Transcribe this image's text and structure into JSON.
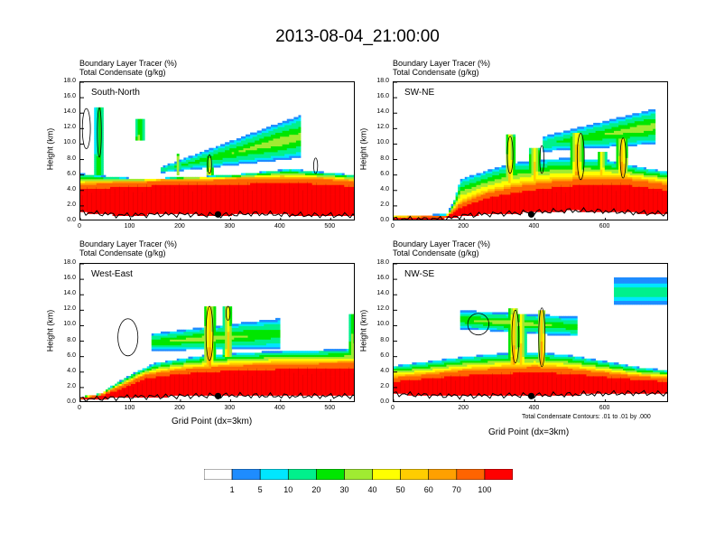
{
  "title": "2013-08-04_21:00:00",
  "colors": {
    "c0": "#ffffff",
    "c1": "#1e8cff",
    "c2": "#00e6ff",
    "c3": "#00f08c",
    "c4": "#00e600",
    "c5": "#a0eb32",
    "c6": "#ffff00",
    "c7": "#ffcd00",
    "c8": "#ffa000",
    "c9": "#ff6400",
    "c10": "#ff0000"
  },
  "legend": {
    "labels": [
      "1",
      "5",
      "10",
      "20",
      "30",
      "40",
      "50",
      "60",
      "70",
      "100"
    ]
  },
  "variable_labels": {
    "line1": "Boundary Layer Tracer   (%)",
    "line2": "Total Condensate   (g/kg)"
  },
  "contour_note": "Total Condensate Contours: .01 to .01 by .000",
  "chart_data": [
    {
      "type": "heatmap",
      "id": "p1",
      "title": "South-North",
      "ylabel": "Height (km)",
      "xlabel": "",
      "xlim": [
        0,
        550
      ],
      "ylim": [
        0,
        18
      ],
      "xticks": [
        "0",
        "100",
        "200",
        "300",
        "400",
        "500"
      ],
      "xtick_values": [
        0,
        100,
        200,
        300,
        400,
        500
      ],
      "yticks": [
        "0.0",
        "2.0",
        "4.0",
        "6.0",
        "8.0",
        "10.0",
        "12.0",
        "14.0",
        "16.0",
        "18.0"
      ],
      "marker_x": 275,
      "terrain": [
        [
          0,
          1.2
        ],
        [
          40,
          1.0
        ],
        [
          80,
          0.8
        ],
        [
          150,
          0.9
        ],
        [
          220,
          0.9
        ],
        [
          280,
          0.8
        ],
        [
          340,
          1.0
        ],
        [
          400,
          0.9
        ],
        [
          460,
          0.8
        ],
        [
          550,
          0.8
        ]
      ],
      "bl_top": [
        [
          0,
          6.2
        ],
        [
          60,
          5.8
        ],
        [
          100,
          5.6
        ],
        [
          160,
          5.6
        ],
        [
          220,
          5.8
        ],
        [
          300,
          6.0
        ],
        [
          360,
          6.4
        ],
        [
          420,
          6.8
        ],
        [
          480,
          6.4
        ],
        [
          550,
          6.0
        ]
      ],
      "bl_red": [
        [
          0,
          4.2
        ],
        [
          100,
          4.5
        ],
        [
          200,
          4.8
        ],
        [
          300,
          4.8
        ],
        [
          400,
          5.0
        ],
        [
          500,
          4.8
        ],
        [
          550,
          4.5
        ]
      ],
      "bl_orange": [
        [
          0,
          5.0
        ],
        [
          100,
          5.2
        ],
        [
          200,
          5.5
        ],
        [
          300,
          5.6
        ],
        [
          400,
          5.8
        ],
        [
          500,
          5.6
        ],
        [
          550,
          5.3
        ]
      ],
      "plumes": [
        {
          "xc": 38,
          "w": 9,
          "bot": 6,
          "top": 14.8,
          "peak": 30
        },
        {
          "xc": 118,
          "w": 10,
          "bot": 10.4,
          "top": 13.2,
          "peak": 35
        },
        {
          "xc": 195,
          "w": 4,
          "bot": 6,
          "top": 8.8,
          "peak": 40
        },
        {
          "xc": 258,
          "w": 7,
          "bot": 6,
          "top": 8.3,
          "peak": 50
        }
      ],
      "anvil": {
        "x0": 160,
        "x1": 440,
        "base0": 6.3,
        "base1": 8.2,
        "top0": 7.0,
        "top1": 13.8,
        "peakx": 400
      },
      "contours": [
        {
          "cx": 12,
          "cy": 12.0,
          "rx": 8,
          "ry": 2.6
        },
        {
          "cx": 38,
          "cy": 11.5,
          "rx": 4,
          "ry": 3.2
        },
        {
          "cx": 258,
          "cy": 7.4,
          "rx": 4,
          "ry": 1.2
        },
        {
          "cx": 470,
          "cy": 7.2,
          "rx": 4,
          "ry": 1.0
        }
      ]
    },
    {
      "type": "heatmap",
      "id": "p2",
      "title": "SW-NE",
      "ylabel": "Height (km)",
      "xlabel": "",
      "xlim": [
        0,
        780
      ],
      "ylim": [
        0,
        18
      ],
      "xticks": [
        "0",
        "200",
        "400",
        "600"
      ],
      "xtick_values": [
        0,
        200,
        400,
        600
      ],
      "yticks": [
        "0.0",
        "2.0",
        "4.0",
        "6.0",
        "8.0",
        "10.0",
        "12.0",
        "14.0",
        "16.0",
        "18.0"
      ],
      "marker_x": 390,
      "terrain": [
        [
          0,
          0.3
        ],
        [
          100,
          0.3
        ],
        [
          160,
          0.4
        ],
        [
          200,
          0.8
        ],
        [
          300,
          1.0
        ],
        [
          400,
          1.2
        ],
        [
          500,
          1.4
        ],
        [
          600,
          1.3
        ],
        [
          700,
          1.1
        ],
        [
          780,
          1.0
        ]
      ],
      "bl_top": [
        [
          0,
          0.8
        ],
        [
          150,
          0.9
        ],
        [
          170,
          2.5
        ],
        [
          190,
          5.5
        ],
        [
          240,
          6.2
        ],
        [
          330,
          7.5
        ],
        [
          420,
          8.0
        ],
        [
          500,
          8.2
        ],
        [
          600,
          8.0
        ],
        [
          700,
          7.0
        ],
        [
          780,
          6.4
        ]
      ],
      "bl_red": [
        [
          0,
          0.5
        ],
        [
          150,
          0.6
        ],
        [
          190,
          1.8
        ],
        [
          260,
          3.0
        ],
        [
          350,
          3.8
        ],
        [
          450,
          4.4
        ],
        [
          550,
          4.8
        ],
        [
          650,
          4.8
        ],
        [
          780,
          4.0
        ]
      ],
      "bl_orange": [
        [
          0,
          0.6
        ],
        [
          150,
          0.7
        ],
        [
          190,
          2.5
        ],
        [
          260,
          3.8
        ],
        [
          350,
          4.8
        ],
        [
          450,
          5.4
        ],
        [
          550,
          5.8
        ],
        [
          650,
          5.8
        ],
        [
          780,
          5.0
        ]
      ],
      "plumes": [
        {
          "xc": 330,
          "w": 14,
          "bot": 5,
          "top": 11.2,
          "peak": 60
        },
        {
          "xc": 400,
          "w": 16,
          "bot": 5,
          "top": 9.4,
          "peak": 60
        },
        {
          "xc": 520,
          "w": 18,
          "bot": 6,
          "top": 11.6,
          "peak": 70
        },
        {
          "xc": 590,
          "w": 12,
          "bot": 6,
          "top": 9.0,
          "peak": 60
        },
        {
          "xc": 648,
          "w": 16,
          "bot": 6,
          "top": 10.8,
          "peak": 70
        }
      ],
      "anvil": {
        "x0": 420,
        "x1": 740,
        "base0": 9.0,
        "base1": 10.0,
        "top0": 11.0,
        "top1": 14.6,
        "peakx": 700
      },
      "contours": [
        {
          "cx": 330,
          "cy": 8.6,
          "rx": 8,
          "ry": 2.4
        },
        {
          "cx": 420,
          "cy": 8.0,
          "rx": 6,
          "ry": 1.8
        },
        {
          "cx": 530,
          "cy": 8.4,
          "rx": 10,
          "ry": 3.0
        },
        {
          "cx": 650,
          "cy": 8.2,
          "rx": 8,
          "ry": 2.6
        }
      ]
    },
    {
      "type": "heatmap",
      "id": "p3",
      "title": "West-East",
      "ylabel": "Height (km)",
      "xlabel": "Grid Point (dx=3km)",
      "xlim": [
        0,
        550
      ],
      "ylim": [
        0,
        18
      ],
      "xticks": [
        "0",
        "100",
        "200",
        "300",
        "400",
        "500"
      ],
      "xtick_values": [
        0,
        100,
        200,
        300,
        400,
        500
      ],
      "yticks": [
        "0.0",
        "2.0",
        "4.0",
        "6.0",
        "8.0",
        "10.0",
        "12.0",
        "14.0",
        "16.0",
        "18.0"
      ],
      "marker_x": 275,
      "terrain": [
        [
          0,
          0.5
        ],
        [
          50,
          0.6
        ],
        [
          100,
          0.8
        ],
        [
          200,
          0.9
        ],
        [
          300,
          1.0
        ],
        [
          400,
          0.9
        ],
        [
          500,
          0.9
        ],
        [
          550,
          0.9
        ]
      ],
      "bl_top": [
        [
          0,
          0.8
        ],
        [
          40,
          1.2
        ],
        [
          70,
          2.5
        ],
        [
          110,
          4.0
        ],
        [
          150,
          5.2
        ],
        [
          250,
          6.2
        ],
        [
          350,
          6.6
        ],
        [
          450,
          6.8
        ],
        [
          550,
          7.0
        ]
      ],
      "bl_red": [
        [
          0,
          0.6
        ],
        [
          40,
          0.9
        ],
        [
          80,
          1.8
        ],
        [
          130,
          3.2
        ],
        [
          200,
          3.8
        ],
        [
          300,
          4.2
        ],
        [
          400,
          4.4
        ],
        [
          550,
          4.5
        ]
      ],
      "bl_orange": [
        [
          0,
          0.7
        ],
        [
          40,
          1.1
        ],
        [
          80,
          2.3
        ],
        [
          130,
          3.8
        ],
        [
          200,
          4.5
        ],
        [
          300,
          5.0
        ],
        [
          400,
          5.3
        ],
        [
          550,
          5.4
        ]
      ],
      "plumes": [
        {
          "xc": 258,
          "w": 12,
          "bot": 4,
          "top": 12.6,
          "peak": 70
        },
        {
          "xc": 295,
          "w": 9,
          "bot": 6,
          "top": 12.4,
          "peak": 60
        },
        {
          "xc": 545,
          "w": 10,
          "bot": 6,
          "top": 11.5,
          "peak": 40
        }
      ],
      "anvil": {
        "x0": 140,
        "x1": 400,
        "base0": 6.8,
        "base1": 7.0,
        "top0": 9.0,
        "top1": 11.0,
        "peakx": 260
      },
      "contours": [
        {
          "cx": 95,
          "cy": 8.5,
          "rx": 20,
          "ry": 2.4
        },
        {
          "cx": 258,
          "cy": 9.0,
          "rx": 7,
          "ry": 3.5
        },
        {
          "cx": 295,
          "cy": 11.6,
          "rx": 4,
          "ry": 0.9
        }
      ]
    },
    {
      "type": "heatmap",
      "id": "p4",
      "title": "NW-SE",
      "ylabel": "Height (km)",
      "xlabel": "Grid Point (dx=3km)",
      "xlim": [
        0,
        780
      ],
      "ylim": [
        0,
        18
      ],
      "xticks": [
        "0",
        "200",
        "400",
        "600"
      ],
      "xtick_values": [
        0,
        200,
        400,
        600
      ],
      "yticks": [
        "0.0",
        "2.0",
        "4.0",
        "6.0",
        "8.0",
        "10.0",
        "12.0",
        "14.0",
        "16.0",
        "18.0"
      ],
      "marker_x": 390,
      "terrain": [
        [
          0,
          1.2
        ],
        [
          100,
          1.0
        ],
        [
          200,
          0.9
        ],
        [
          300,
          1.0
        ],
        [
          400,
          1.0
        ],
        [
          500,
          1.1
        ],
        [
          600,
          1.2
        ],
        [
          700,
          1.3
        ],
        [
          780,
          1.2
        ]
      ],
      "bl_top": [
        [
          0,
          4.8
        ],
        [
          100,
          5.4
        ],
        [
          200,
          6.0
        ],
        [
          300,
          6.4
        ],
        [
          400,
          6.6
        ],
        [
          500,
          6.2
        ],
        [
          600,
          5.4
        ],
        [
          700,
          4.6
        ],
        [
          780,
          4.2
        ]
      ],
      "bl_red": [
        [
          0,
          2.8
        ],
        [
          100,
          3.2
        ],
        [
          200,
          3.6
        ],
        [
          300,
          3.8
        ],
        [
          400,
          4.0
        ],
        [
          500,
          3.8
        ],
        [
          600,
          3.4
        ],
        [
          700,
          3.0
        ],
        [
          780,
          2.8
        ]
      ],
      "bl_orange": [
        [
          0,
          3.5
        ],
        [
          100,
          3.9
        ],
        [
          200,
          4.4
        ],
        [
          300,
          4.7
        ],
        [
          400,
          4.9
        ],
        [
          500,
          4.6
        ],
        [
          600,
          4.1
        ],
        [
          700,
          3.6
        ],
        [
          780,
          3.4
        ]
      ],
      "plumes": [
        {
          "xc": 340,
          "w": 14,
          "bot": 5,
          "top": 12.2,
          "peak": 70
        },
        {
          "xc": 362,
          "w": 12,
          "bot": 5,
          "top": 11.5,
          "peak": 60
        },
        {
          "xc": 420,
          "w": 12,
          "bot": 5,
          "top": 12.0,
          "peak": 70
        }
      ],
      "anvil": {
        "x0": 190,
        "x1": 520,
        "base0": 9.6,
        "base1": 8.6,
        "top0": 12.0,
        "top1": 11.2,
        "peakx": 330
      },
      "extra_cloud": {
        "x0": 625,
        "x1": 780,
        "base": 12.6,
        "top": 16.2
      },
      "contours": [
        {
          "cx": 240,
          "cy": 10.2,
          "rx": 30,
          "ry": 1.4
        },
        {
          "cx": 345,
          "cy": 8.6,
          "rx": 10,
          "ry": 3.4
        },
        {
          "cx": 420,
          "cy": 8.5,
          "rx": 9,
          "ry": 3.8
        }
      ]
    }
  ]
}
